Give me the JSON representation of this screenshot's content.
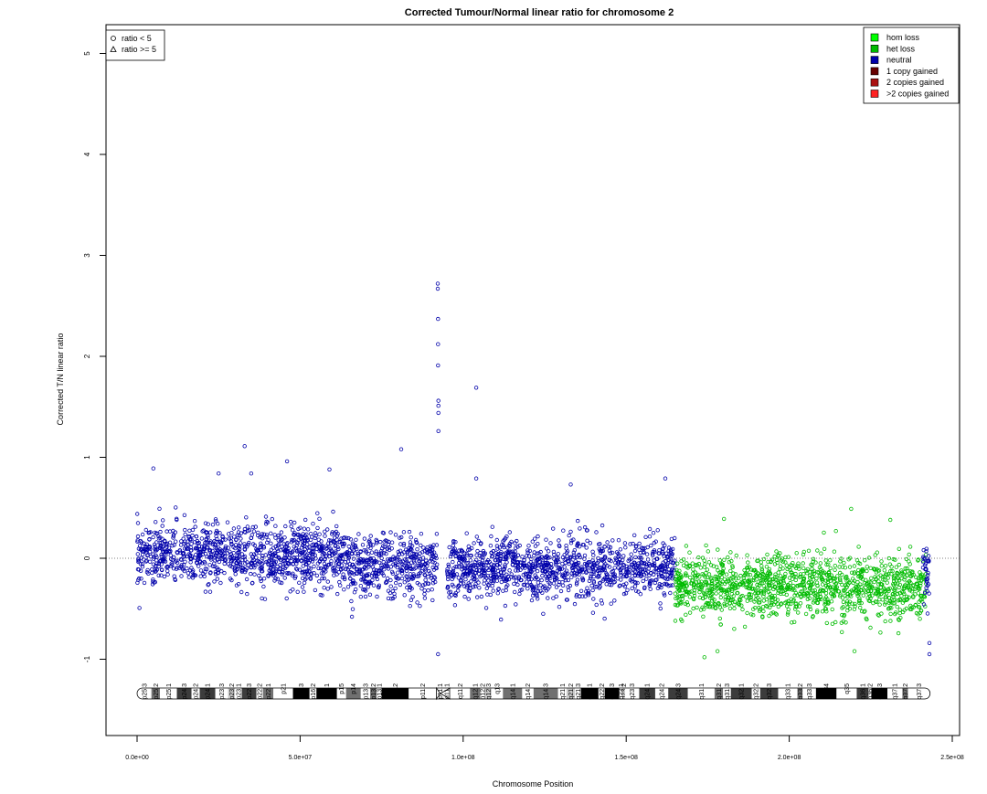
{
  "chart_data": {
    "type": "scatter",
    "title": "Corrected Tumour/Normal linear ratio for chromosome  2",
    "xlabel": "Chromosome Position",
    "ylabel": "Corrected T/N linear ratio",
    "xlim": [
      0,
      250000000
    ],
    "ylim": [
      -1.75,
      5.3
    ],
    "x_ticks": [
      {
        "value": 0,
        "label": "0.0e+00"
      },
      {
        "value": 50000000,
        "label": "5.0e+07"
      },
      {
        "value": 100000000,
        "label": "1.0e+08"
      },
      {
        "value": 150000000,
        "label": "1.5e+08"
      },
      {
        "value": 200000000,
        "label": "2.0e+08"
      },
      {
        "value": 250000000,
        "label": "2.5e+08"
      }
    ],
    "y_ticks": [
      {
        "value": -1,
        "label": "-1"
      },
      {
        "value": 0,
        "label": "0"
      },
      {
        "value": 1,
        "label": "1"
      },
      {
        "value": 2,
        "label": "2"
      },
      {
        "value": 3,
        "label": "3"
      },
      {
        "value": 4,
        "label": "4"
      },
      {
        "value": 5,
        "label": "5"
      }
    ],
    "reference_line": {
      "y": 0,
      "style": "dotted"
    },
    "shape_legend": {
      "placement": "top-left",
      "entries": [
        {
          "label": "ratio < 5",
          "shape": "circle"
        },
        {
          "label": "ratio >= 5",
          "shape": "triangle"
        }
      ]
    },
    "status_legend": {
      "placement": "top-right",
      "entries": [
        {
          "label": "hom loss",
          "color": "#00ff00"
        },
        {
          "label": "het loss",
          "color": "#00bb00"
        },
        {
          "label": "neutral",
          "color": "#0000aa"
        },
        {
          "label": "1 copy gained",
          "color": "#660000"
        },
        {
          "label": "2 copies gained",
          "color": "#aa1111"
        },
        {
          "label": ">2 copies gained",
          "color": "#ff2222"
        }
      ]
    },
    "segments": [
      {
        "status": "neutral",
        "x_start": 0,
        "x_end": 65000000,
        "mean": 0.03,
        "spread": 0.2
      },
      {
        "status": "neutral",
        "x_start": 65000000,
        "x_end": 92000000,
        "mean": -0.08,
        "spread": 0.2
      },
      {
        "status": "neutral",
        "x_start": 95000000,
        "x_end": 165000000,
        "mean": -0.1,
        "spread": 0.2
      },
      {
        "status": "het loss",
        "x_start": 165000000,
        "x_end": 242000000,
        "mean": -0.28,
        "spread": 0.2
      },
      {
        "status": "neutral",
        "x_start": 241000000,
        "x_end": 243000000,
        "mean": -0.2,
        "spread": 0.25
      }
    ],
    "outliers": [
      {
        "x": 92200000,
        "y": 2.72,
        "status": "neutral"
      },
      {
        "x": 92200000,
        "y": 2.67,
        "status": "neutral"
      },
      {
        "x": 92300000,
        "y": 2.37,
        "status": "neutral"
      },
      {
        "x": 92300000,
        "y": 2.12,
        "status": "neutral"
      },
      {
        "x": 92300000,
        "y": 1.91,
        "status": "neutral"
      },
      {
        "x": 92400000,
        "y": 1.56,
        "status": "neutral"
      },
      {
        "x": 92400000,
        "y": 1.51,
        "status": "neutral"
      },
      {
        "x": 92400000,
        "y": 1.44,
        "status": "neutral"
      },
      {
        "x": 92400000,
        "y": 1.26,
        "status": "neutral"
      },
      {
        "x": 92300000,
        "y": -0.95,
        "status": "neutral"
      },
      {
        "x": 104000000,
        "y": 1.69,
        "status": "neutral"
      },
      {
        "x": 33000000,
        "y": 1.11,
        "status": "neutral"
      },
      {
        "x": 81000000,
        "y": 1.08,
        "status": "neutral"
      },
      {
        "x": 46000000,
        "y": 0.96,
        "status": "neutral"
      },
      {
        "x": 5000000,
        "y": 0.89,
        "status": "neutral"
      },
      {
        "x": 59000000,
        "y": 0.88,
        "status": "neutral"
      },
      {
        "x": 25000000,
        "y": 0.84,
        "status": "neutral"
      },
      {
        "x": 35000000,
        "y": 0.84,
        "status": "neutral"
      },
      {
        "x": 104000000,
        "y": 0.79,
        "status": "neutral"
      },
      {
        "x": 162000000,
        "y": 0.79,
        "status": "neutral"
      },
      {
        "x": 133000000,
        "y": 0.73,
        "status": "neutral"
      },
      {
        "x": 219000000,
        "y": 0.49,
        "status": "het loss"
      },
      {
        "x": 231000000,
        "y": 0.38,
        "status": "het loss"
      },
      {
        "x": 180000000,
        "y": 0.39,
        "status": "het loss"
      },
      {
        "x": 174000000,
        "y": -0.98,
        "status": "het loss"
      },
      {
        "x": 178000000,
        "y": -0.92,
        "status": "het loss"
      },
      {
        "x": 220000000,
        "y": -0.92,
        "status": "het loss"
      },
      {
        "x": 243000000,
        "y": -0.95,
        "status": "neutral"
      },
      {
        "x": 243000000,
        "y": -0.84,
        "status": "neutral"
      }
    ],
    "ideogram": {
      "centromere_x": 93000000,
      "bands": [
        {
          "name": "p25.3",
          "start": 0,
          "end": 4400000,
          "stain": "gneg"
        },
        {
          "name": "p25.2",
          "start": 4400000,
          "end": 7000000,
          "stain": "gpos50"
        },
        {
          "name": "p25.1",
          "start": 7000000,
          "end": 12200000,
          "stain": "gneg"
        },
        {
          "name": "p24.3",
          "start": 12200000,
          "end": 16700000,
          "stain": "gpos75"
        },
        {
          "name": "p24.2",
          "start": 16700000,
          "end": 19200000,
          "stain": "gneg"
        },
        {
          "name": "p24.1",
          "start": 19200000,
          "end": 24000000,
          "stain": "gpos75"
        },
        {
          "name": "p23.3",
          "start": 24000000,
          "end": 27900000,
          "stain": "gneg"
        },
        {
          "name": "p23.2",
          "start": 27900000,
          "end": 30000000,
          "stain": "gpos25"
        },
        {
          "name": "p23.1",
          "start": 30000000,
          "end": 32100000,
          "stain": "gneg"
        },
        {
          "name": "p22.3",
          "start": 32100000,
          "end": 36600000,
          "stain": "gpos75"
        },
        {
          "name": "p22.2",
          "start": 36600000,
          "end": 38600000,
          "stain": "gneg"
        },
        {
          "name": "p22.1",
          "start": 38600000,
          "end": 41800000,
          "stain": "gpos50"
        },
        {
          "name": "p21",
          "start": 41800000,
          "end": 47800000,
          "stain": "gneg"
        },
        {
          "name": "p16.3",
          "start": 47800000,
          "end": 52900000,
          "stain": "gpos100"
        },
        {
          "name": "p16.2",
          "start": 52900000,
          "end": 55000000,
          "stain": "gneg"
        },
        {
          "name": "p16.1",
          "start": 55000000,
          "end": 61300000,
          "stain": "gpos100"
        },
        {
          "name": "p15",
          "start": 61300000,
          "end": 64100000,
          "stain": "gneg"
        },
        {
          "name": "p14",
          "start": 64100000,
          "end": 68600000,
          "stain": "gpos50"
        },
        {
          "name": "p13.3",
          "start": 68600000,
          "end": 71500000,
          "stain": "gneg"
        },
        {
          "name": "p13.2",
          "start": 71500000,
          "end": 73500000,
          "stain": "gpos50"
        },
        {
          "name": "p13.1",
          "start": 73500000,
          "end": 75000000,
          "stain": "gneg"
        },
        {
          "name": "p12",
          "start": 75000000,
          "end": 83300000,
          "stain": "gpos100"
        },
        {
          "name": "p11.2",
          "start": 83300000,
          "end": 91800000,
          "stain": "gneg"
        },
        {
          "name": "p11.1",
          "start": 91800000,
          "end": 93900000,
          "stain": "acen"
        },
        {
          "name": "q11.1",
          "start": 93900000,
          "end": 96000000,
          "stain": "acen"
        },
        {
          "name": "q11.2",
          "start": 96000000,
          "end": 102100000,
          "stain": "gneg"
        },
        {
          "name": "q12.1",
          "start": 102100000,
          "end": 105300000,
          "stain": "gpos50"
        },
        {
          "name": "q12.2",
          "start": 105300000,
          "end": 106700000,
          "stain": "gneg"
        },
        {
          "name": "q12.3",
          "start": 106700000,
          "end": 108700000,
          "stain": "gpos25"
        },
        {
          "name": "q13",
          "start": 108700000,
          "end": 112200000,
          "stain": "gneg"
        },
        {
          "name": "q14.1",
          "start": 112200000,
          "end": 118100000,
          "stain": "gpos50"
        },
        {
          "name": "q14.2",
          "start": 118100000,
          "end": 121600000,
          "stain": "gneg"
        },
        {
          "name": "q14.3",
          "start": 121600000,
          "end": 129100000,
          "stain": "gpos50"
        },
        {
          "name": "q21.1",
          "start": 129100000,
          "end": 131700000,
          "stain": "gneg"
        },
        {
          "name": "q21.2",
          "start": 131700000,
          "end": 134300000,
          "stain": "gpos25"
        },
        {
          "name": "q21.3",
          "start": 134300000,
          "end": 136100000,
          "stain": "gneg"
        },
        {
          "name": "q22.1",
          "start": 136100000,
          "end": 141500000,
          "stain": "gpos100"
        },
        {
          "name": "q22.2",
          "start": 141500000,
          "end": 143400000,
          "stain": "gneg"
        },
        {
          "name": "q22.3",
          "start": 143400000,
          "end": 147900000,
          "stain": "gpos100"
        },
        {
          "name": "q23.1",
          "start": 147900000,
          "end": 149000000,
          "stain": "gneg"
        },
        {
          "name": "q23.2",
          "start": 149000000,
          "end": 149600000,
          "stain": "gpos25"
        },
        {
          "name": "q23.3",
          "start": 149600000,
          "end": 154000000,
          "stain": "gneg"
        },
        {
          "name": "q24.1",
          "start": 154000000,
          "end": 158900000,
          "stain": "gpos75"
        },
        {
          "name": "q24.2",
          "start": 158900000,
          "end": 162900000,
          "stain": "gneg"
        },
        {
          "name": "q24.3",
          "start": 162900000,
          "end": 168900000,
          "stain": "gpos75"
        },
        {
          "name": "q31.1",
          "start": 168900000,
          "end": 177100000,
          "stain": "gneg"
        },
        {
          "name": "q31.2",
          "start": 177100000,
          "end": 179700000,
          "stain": "gpos50"
        },
        {
          "name": "q31.3",
          "start": 179700000,
          "end": 182100000,
          "stain": "gneg"
        },
        {
          "name": "q32.1",
          "start": 182100000,
          "end": 188500000,
          "stain": "gpos75"
        },
        {
          "name": "q32.2",
          "start": 188500000,
          "end": 191100000,
          "stain": "gneg"
        },
        {
          "name": "q32.3",
          "start": 191100000,
          "end": 196600000,
          "stain": "gpos75"
        },
        {
          "name": "q33.1",
          "start": 196600000,
          "end": 202500000,
          "stain": "gneg"
        },
        {
          "name": "q33.2",
          "start": 202500000,
          "end": 204100000,
          "stain": "gpos50"
        },
        {
          "name": "q33.3",
          "start": 204100000,
          "end": 208200000,
          "stain": "gneg"
        },
        {
          "name": "q34",
          "start": 208200000,
          "end": 214500000,
          "stain": "gpos100"
        },
        {
          "name": "q35",
          "start": 214500000,
          "end": 220700000,
          "stain": "gneg"
        },
        {
          "name": "q36.1",
          "start": 220700000,
          "end": 224300000,
          "stain": "gpos75"
        },
        {
          "name": "q36.2",
          "start": 224300000,
          "end": 225200000,
          "stain": "gneg"
        },
        {
          "name": "q36.3",
          "start": 225200000,
          "end": 230100000,
          "stain": "gpos100"
        },
        {
          "name": "q37.1",
          "start": 230100000,
          "end": 234700000,
          "stain": "gneg"
        },
        {
          "name": "q37.2",
          "start": 234700000,
          "end": 236400000,
          "stain": "gpos50"
        },
        {
          "name": "q37.3",
          "start": 236400000,
          "end": 243200000,
          "stain": "gneg"
        }
      ]
    }
  }
}
